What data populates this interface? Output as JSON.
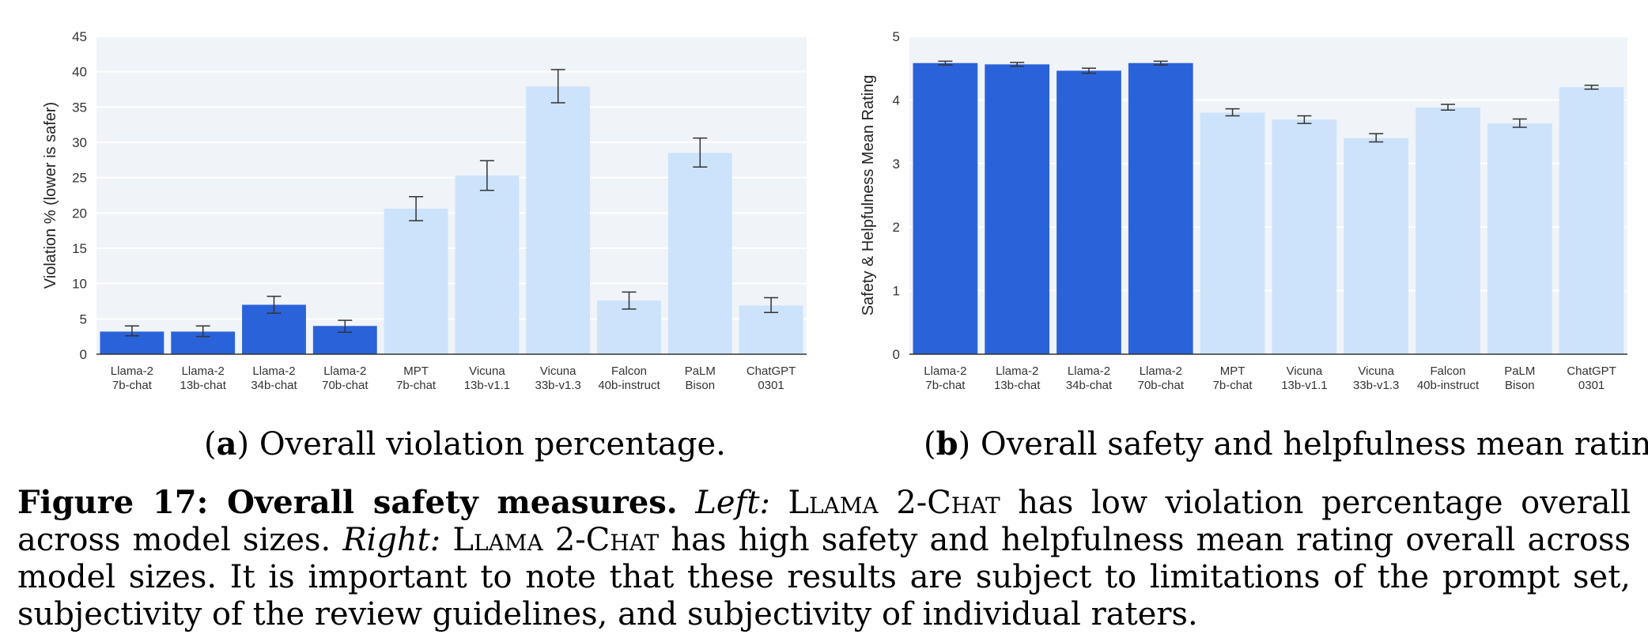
{
  "chart_data": [
    {
      "type": "bar",
      "ylabel": "Violation % (lower is safer)",
      "ylim": [
        0,
        45
      ],
      "yticks": [
        0,
        5,
        10,
        15,
        20,
        25,
        30,
        35,
        40,
        45
      ],
      "categories": [
        [
          "Llama-2",
          "7b-chat"
        ],
        [
          "Llama-2",
          "13b-chat"
        ],
        [
          "Llama-2",
          "34b-chat"
        ],
        [
          "Llama-2",
          "70b-chat"
        ],
        [
          "MPT",
          "7b-chat"
        ],
        [
          "Vicuna",
          "13b-v1.1"
        ],
        [
          "Vicuna",
          "33b-v1.3"
        ],
        [
          "Falcon",
          "40b-instruct"
        ],
        [
          "PaLM",
          "Bison"
        ],
        [
          "ChatGPT",
          "0301"
        ]
      ],
      "values": [
        3.2,
        3.2,
        7.0,
        4.0,
        20.6,
        25.3,
        37.9,
        7.6,
        28.5,
        6.9
      ],
      "error_low": [
        2.6,
        2.5,
        5.8,
        3.1,
        18.9,
        23.2,
        35.6,
        6.4,
        26.5,
        5.9
      ],
      "error_high": [
        4.0,
        4.0,
        8.2,
        4.8,
        22.3,
        27.4,
        40.3,
        8.8,
        30.6,
        8.0
      ],
      "highlight_count": 4,
      "colors": {
        "highlight": "#2a63d9",
        "other": "#cce3fb",
        "plot_bg": "#f0f3f8",
        "grid": "#ffffff",
        "error_bar": "#333333"
      },
      "grid": true
    },
    {
      "type": "bar",
      "ylabel": "Safety & Helpfulness Mean Rating",
      "ylim": [
        0,
        5
      ],
      "yticks": [
        0,
        1,
        2,
        3,
        4,
        5
      ],
      "categories": [
        [
          "Llama-2",
          "7b-chat"
        ],
        [
          "Llama-2",
          "13b-chat"
        ],
        [
          "Llama-2",
          "34b-chat"
        ],
        [
          "Llama-2",
          "70b-chat"
        ],
        [
          "MPT",
          "7b-chat"
        ],
        [
          "Vicuna",
          "13b-v1.1"
        ],
        [
          "Vicuna",
          "33b-v1.3"
        ],
        [
          "Falcon",
          "40b-instruct"
        ],
        [
          "PaLM",
          "Bison"
        ],
        [
          "ChatGPT",
          "0301"
        ]
      ],
      "values": [
        4.58,
        4.56,
        4.46,
        4.58,
        3.8,
        3.69,
        3.4,
        3.88,
        3.63,
        4.2
      ],
      "error_low": [
        4.55,
        4.53,
        4.42,
        4.55,
        3.75,
        3.63,
        3.34,
        3.84,
        3.57,
        4.17
      ],
      "error_high": [
        4.61,
        4.59,
        4.5,
        4.61,
        3.86,
        3.75,
        3.47,
        3.93,
        3.7,
        4.23
      ],
      "highlight_count": 4,
      "colors": {
        "highlight": "#2a63d9",
        "other": "#cce3fb",
        "plot_bg": "#f0f3f8",
        "grid": "#ffffff",
        "error_bar": "#333333"
      },
      "grid": true
    }
  ],
  "subcaptions": {
    "a": {
      "label": "a",
      "text": "Overall violation percentage."
    },
    "b": {
      "label": "b",
      "text": "Overall safety and helpfulness mean rating."
    }
  },
  "caption": {
    "figure_label": "Figure 17: Overall safety measures.",
    "left_label": "Left:",
    "model_name_1": "Llama 2-Chat",
    "left_text": "has low violation percentage overall across model sizes.",
    "right_label": "Right:",
    "model_name_2": "Llama 2-Chat",
    "right_text": "has high safety and helpfulness mean rating overall across model sizes. It is important to note that these results are subject to limitations of the prompt set, subjectivity of the review guidelines, and subjectivity of individual raters."
  }
}
